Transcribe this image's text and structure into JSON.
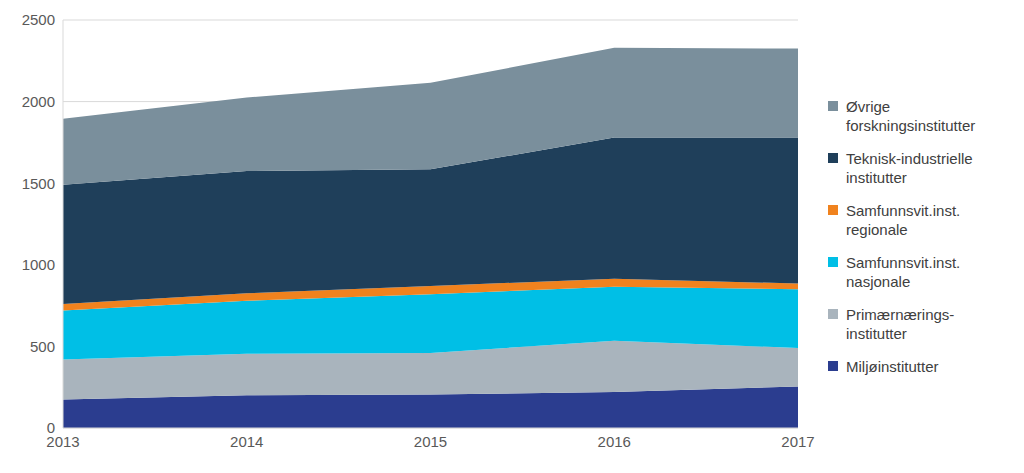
{
  "chart_data": {
    "type": "area",
    "stacked": true,
    "grid": true,
    "legend": "right",
    "categories": [
      "2013",
      "2014",
      "2015",
      "2016",
      "2017"
    ],
    "ylim": [
      0,
      2500
    ],
    "yticks": [
      0,
      500,
      1000,
      1500,
      2000,
      2500
    ],
    "series": [
      {
        "name": "Miljøinstitutter",
        "color": "#2b3d8f",
        "values": [
          175,
          200,
          205,
          220,
          255
        ]
      },
      {
        "name": "Primærnærings-institutter",
        "color": "#a9b4bd",
        "values": [
          245,
          255,
          255,
          315,
          235
        ]
      },
      {
        "name": "Samfunnsvit.inst. nasjonale",
        "color": "#00bfe6",
        "values": [
          300,
          325,
          360,
          330,
          360
        ]
      },
      {
        "name": "Samfunnsvit.inst. regionale",
        "color": "#f0821e",
        "values": [
          40,
          45,
          50,
          50,
          35
        ]
      },
      {
        "name": "Teknisk-industrielle institutter",
        "color": "#1f3f5a",
        "values": [
          730,
          750,
          715,
          865,
          895
        ]
      },
      {
        "name": "Øvrige forskningsinstitutter",
        "color": "#7a8f9c",
        "values": [
          405,
          450,
          530,
          550,
          545
        ]
      }
    ]
  }
}
